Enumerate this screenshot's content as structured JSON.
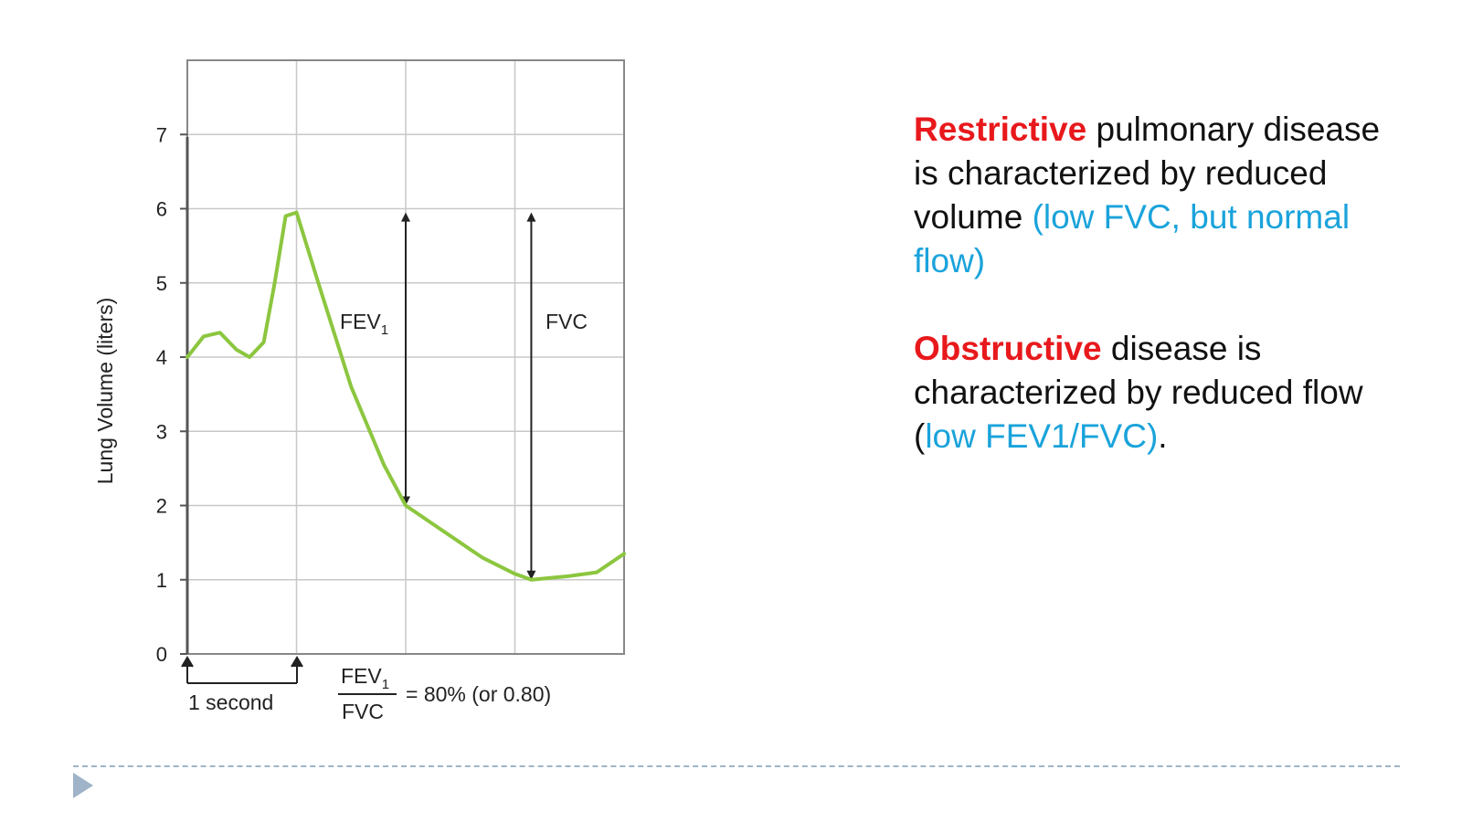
{
  "chart_data": {
    "type": "line",
    "ylabel": "Lung Volume (liters)",
    "ylim": [
      0,
      8
    ],
    "xlim": [
      0,
      4
    ],
    "y_ticks": [
      0,
      1,
      2,
      3,
      4,
      5,
      6,
      7
    ],
    "grid": true,
    "series": [
      {
        "color": "#8cc63f",
        "points": [
          [
            0,
            4.0
          ],
          [
            0.15,
            4.28
          ],
          [
            0.3,
            4.33
          ],
          [
            0.45,
            4.1
          ],
          [
            0.57,
            4.0
          ],
          [
            0.7,
            4.2
          ],
          [
            0.8,
            5.0
          ],
          [
            0.9,
            5.9
          ],
          [
            1.0,
            5.95
          ],
          [
            1.2,
            5.0
          ],
          [
            1.5,
            3.6
          ],
          [
            1.8,
            2.55
          ],
          [
            2.0,
            2.0
          ],
          [
            2.3,
            1.7
          ],
          [
            2.7,
            1.3
          ],
          [
            3.0,
            1.08
          ],
          [
            3.15,
            1.0
          ],
          [
            3.5,
            1.05
          ],
          [
            3.75,
            1.1
          ],
          [
            4.0,
            1.35
          ]
        ]
      }
    ],
    "annotations": {
      "fev1_label": "FEV",
      "fev1_sub": "1",
      "fvc_label": "FVC",
      "interval_label": "1 second",
      "ratio_numerator": "FEV",
      "ratio_numerator_sub": "1",
      "ratio_denominator": "FVC",
      "ratio_text": "= 80% (or 0.80)"
    }
  },
  "text_panel": {
    "para1": {
      "keyword": "Restrictive",
      "text_a": " pulmonary disease is characterized by reduced volume ",
      "highlight": "(low FVC, but normal flow)"
    },
    "para2": {
      "keyword": "Obstructive",
      "text_a": " disease is characterized by reduced flow (",
      "highlight": "low FEV1/FVC)",
      "text_b": "."
    }
  },
  "colors": {
    "keyword": "#e8191c",
    "highlight": "#1aa3db",
    "curve": "#8cc63f",
    "grid": "#c8c8c8",
    "divider": "#9fb4c8"
  }
}
